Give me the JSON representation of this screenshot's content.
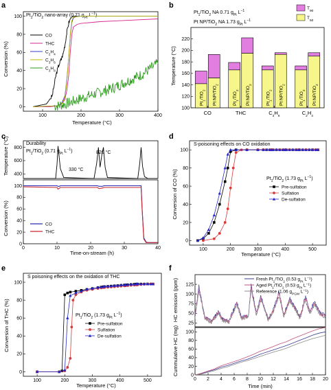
{
  "chart_data": [
    {
      "panel": "a",
      "type": "line",
      "title": "Pt₁/TiO₂ nano-array (0.71 gₜ L⁻¹)",
      "title_parts": {
        "a": "Pt",
        "b": "1",
        "c": "/TiO",
        "d": "2",
        "e": " nano-array (0.71 g",
        "f": "Pt",
        "g": " L",
        "h": "−1",
        "i": ")"
      },
      "xlabel": "Temperature (°C)",
      "ylabel": "Conversion (%)",
      "xlim": [
        50,
        400
      ],
      "ylim": [
        -5,
        105
      ],
      "xticks": [
        100,
        200,
        300,
        400
      ],
      "yticks": [
        0,
        20,
        40,
        60,
        80,
        100
      ],
      "legend_position": "left",
      "series": [
        {
          "name": "CO",
          "legend": {
            "a": "CO"
          },
          "color": "#000000",
          "x": [
            75,
            110,
            125,
            135,
            142,
            148,
            153,
            158,
            163,
            168,
            172,
            176,
            180,
            200,
            250,
            300,
            400
          ],
          "y": [
            0,
            3,
            12,
            35,
            46,
            52,
            58,
            68,
            82,
            93,
            97,
            99,
            100,
            100,
            100,
            100,
            100
          ]
        },
        {
          "name": "THC",
          "legend": {
            "a": "THC"
          },
          "color": "#d6278f",
          "x": [
            75,
            120,
            140,
            150,
            158,
            163,
            168,
            172,
            176,
            180,
            190,
            200,
            250,
            300,
            400
          ],
          "y": [
            0,
            0,
            1,
            3,
            8,
            18,
            35,
            60,
            80,
            88,
            91,
            92,
            94,
            95,
            97
          ]
        },
        {
          "name": "C2H4",
          "legend": {
            "a": "C",
            "b": "2",
            "c": "H",
            "d": "4"
          },
          "color": "#3a3acf",
          "x": [
            75,
            140,
            150,
            158,
            163,
            168,
            172,
            176,
            180,
            190,
            200,
            250,
            400
          ],
          "y": [
            0,
            1,
            4,
            12,
            30,
            55,
            78,
            93,
            98,
            100,
            100,
            100,
            100
          ]
        },
        {
          "name": "C3H6",
          "legend": {
            "a": "C",
            "b": "3",
            "c": "H",
            "d": "6"
          },
          "color": "#b8b800",
          "x": [
            75,
            140,
            150,
            158,
            163,
            168,
            172,
            176,
            180,
            200,
            250,
            400
          ],
          "y": [
            0,
            1,
            3,
            10,
            28,
            55,
            80,
            95,
            99,
            100,
            100,
            100
          ]
        },
        {
          "name": "C3H8",
          "legend": {
            "a": "C",
            "b": "3",
            "c": "H",
            "d": "8"
          },
          "color": "#2e9a1e",
          "x": [
            75,
            120,
            140,
            160,
            180,
            200,
            220,
            250,
            280,
            300,
            330,
            360,
            380,
            400
          ],
          "y": [
            0,
            0,
            1,
            3,
            6,
            9,
            12,
            16,
            20,
            24,
            30,
            36,
            42,
            48
          ]
        }
      ]
    },
    {
      "panel": "b",
      "type": "bar",
      "xlabel": "",
      "ylabel": "Temperature (°C)",
      "ylim": [
        100,
        240
      ],
      "yticks": [
        100,
        120,
        140,
        160,
        180,
        200,
        220
      ],
      "groups": [
        {
          "label": "CO",
          "bars": [
            {
              "t50": 142,
              "t90": 164
            },
            {
              "t50": 152,
              "t90": 193
            }
          ]
        },
        {
          "label": "THC",
          "bars": [
            {
              "t50": 166,
              "t90": 179
            },
            {
              "t50": 195,
              "t90": 222
            }
          ]
        },
        {
          "label": "C3H6",
          "label_parts": {
            "a": "C",
            "b": "3",
            "c": "H",
            "d": "6"
          },
          "bars": [
            {
              "t50": 166,
              "t90": 173
            },
            {
              "t50": 193,
              "t90": 196
            }
          ]
        },
        {
          "label": "C2H4",
          "label_parts": {
            "a": "C",
            "b": "2",
            "c": "H",
            "d": "4"
          },
          "bars": [
            {
              "t50": 166,
              "t90": 173
            },
            {
              "t50": 190,
              "t90": 196
            }
          ]
        }
      ],
      "bar_labels": [
        {
          "a": "Pt",
          "b": "1",
          "c": "/TiO",
          "d": "2"
        },
        {
          "a": "Pt NP/TiO",
          "b": "2"
        }
      ],
      "legend": [
        {
          "a": "T",
          "b": "90",
          "color": "#e27ee0"
        },
        {
          "a": "T",
          "b": "50",
          "color": "#f6f68a"
        }
      ],
      "legend_position": "top-right",
      "notes": [
        {
          "a": "Pt",
          "b": "1",
          "c": "/TiO",
          "d": "2",
          "e": " NA 0.71 g",
          "f": "Pt",
          "g": " L",
          "h": "−1"
        },
        {
          "a": "Pt NP/TiO",
          "b": "2",
          "c": " NA 1.73 g",
          "d": "Pt",
          "e": " L",
          "f": "−1"
        }
      ]
    },
    {
      "panel": "c",
      "type": "line",
      "title": "Durability",
      "subtitle": {
        "a": "Pt",
        "b": "1",
        "c": "/TiO",
        "d": "2",
        "e": " (0.71 g",
        "f": "Pt",
        "g": " L",
        "h": "−1",
        "i": ")"
      },
      "xlabel": "Time-on-stream (h)",
      "ylabel_top": "Temperature (°C)",
      "ylabel_bottom": "Conversion (%)",
      "xlim": [
        0,
        40
      ],
      "xticks": [
        0,
        10,
        20,
        30,
        40
      ],
      "ylim_top": [
        330,
        900
      ],
      "yticks_top": [
        400,
        600,
        800
      ],
      "ylim_bottom": [
        0,
        110
      ],
      "yticks_bottom": [
        0,
        20,
        40,
        60,
        80,
        100
      ],
      "annotations": [
        "330 °C",
        "820 °C"
      ],
      "temperature": {
        "x": [
          0,
          9.6,
          10,
          10.3,
          11,
          12,
          21,
          21.8,
          22.3,
          22.8,
          23.3,
          23.8,
          24.3,
          25,
          34,
          34.6,
          35,
          35.4,
          36,
          37,
          40
        ],
        "y": [
          330,
          330,
          540,
          820,
          480,
          345,
          330,
          560,
          800,
          500,
          680,
          800,
          500,
          345,
          330,
          560,
          800,
          520,
          360,
          330,
          330
        ]
      },
      "legend_position": "bottom-left",
      "series": [
        {
          "name": "CO",
          "color": "#2a2ab8",
          "x": [
            0,
            10,
            10.3,
            10.8,
            11,
            22,
            22.5,
            23.5,
            24,
            34,
            35,
            35.3,
            35.8,
            36.5,
            37,
            40
          ],
          "y": [
            100,
            100,
            99,
            99,
            100,
            100,
            99,
            99,
            100,
            100,
            100,
            60,
            10,
            3,
            2,
            2
          ]
        },
        {
          "name": "THC",
          "color": "#c8282e",
          "x": [
            0,
            10,
            10.3,
            10.8,
            11,
            22,
            22.5,
            23.5,
            24,
            34,
            35,
            35.3,
            35.8,
            36.5,
            37,
            40
          ],
          "y": [
            98,
            97,
            94,
            96,
            97,
            97,
            95,
            96,
            97,
            97,
            97,
            58,
            8,
            2,
            2,
            2
          ]
        }
      ]
    },
    {
      "panel": "d",
      "type": "line",
      "title": "S-poisoning effects on CO oxidation",
      "note": {
        "a": "Pt",
        "b": "1",
        "c": "/TiO",
        "d": "2",
        "e": " (1.73 g",
        "f": "Pt",
        "g": " L",
        "h": "−1",
        "i": ")"
      },
      "xlabel": "Temperature (°C)",
      "ylabel": "Conversion of CO (%)",
      "xlim": [
        50,
        550
      ],
      "ylim": [
        -5,
        110
      ],
      "xticks": [
        100,
        200,
        300,
        400,
        500
      ],
      "yticks": [
        0,
        20,
        40,
        60,
        80,
        100
      ],
      "legend_position": "right",
      "series": [
        {
          "name": "Pre-sulfation",
          "marker": "square",
          "color": "#000000",
          "x": [
            80,
            100,
            120,
            140,
            160,
            180,
            190,
            200,
            220,
            260,
            300,
            350,
            400,
            450,
            500,
            520
          ],
          "y": [
            0,
            2,
            8,
            20,
            40,
            65,
            80,
            98,
            100,
            100,
            100,
            100,
            100,
            100,
            100,
            100
          ]
        },
        {
          "name": "Sulfation",
          "marker": "circle",
          "color": "#d73a3a",
          "x": [
            100,
            140,
            160,
            180,
            190,
            200,
            210,
            220,
            240,
            260,
            300,
            350,
            400,
            450,
            500,
            520
          ],
          "y": [
            0,
            2,
            8,
            20,
            35,
            58,
            80,
            97,
            100,
            100,
            100,
            100,
            100,
            100,
            100,
            100
          ]
        },
        {
          "name": "De-sulfation",
          "marker": "triangle",
          "color": "#2626c8",
          "x": [
            80,
            100,
            120,
            140,
            160,
            180,
            190,
            200,
            220,
            260,
            300,
            350,
            400,
            450,
            500,
            520
          ],
          "y": [
            0,
            3,
            12,
            28,
            52,
            80,
            95,
            100,
            100,
            100,
            100,
            100,
            100,
            100,
            100,
            100
          ]
        }
      ]
    },
    {
      "panel": "e",
      "type": "line",
      "title": "S poisoning effects on the oxidation of THC",
      "note": {
        "a": "Pt",
        "b": "1",
        "c": "/TiO",
        "d": "2",
        "e": " (1.73 g",
        "f": "Pt",
        "g": " L",
        "h": "−1",
        "i": ")"
      },
      "xlabel": "Temperature (°C)",
      "ylabel": "Conversion of THC (%)",
      "xlim": [
        50,
        550
      ],
      "ylim": [
        -5,
        110
      ],
      "xticks": [
        100,
        200,
        300,
        400,
        500
      ],
      "yticks": [
        0,
        20,
        40,
        60,
        80,
        100
      ],
      "legend_position": "right",
      "series": [
        {
          "name": "Pre-sulfation",
          "marker": "square",
          "color": "#000000",
          "x": [
            100,
            180,
            190,
            200,
            210,
            220,
            240,
            260,
            280,
            300,
            340,
            380,
            420,
            460,
            500,
            520
          ],
          "y": [
            0,
            0,
            1,
            86,
            88,
            89,
            90,
            91,
            92,
            93,
            95,
            96,
            97,
            98,
            98,
            98
          ]
        },
        {
          "name": "Sulfation",
          "marker": "circle",
          "color": "#d73a3a",
          "x": [
            100,
            180,
            200,
            210,
            220,
            225,
            230,
            240,
            260,
            280,
            300,
            340,
            380,
            420,
            460,
            500,
            520
          ],
          "y": [
            0,
            0,
            1,
            5,
            15,
            50,
            80,
            86,
            89,
            91,
            92,
            94,
            95,
            96,
            97,
            98,
            98
          ]
        },
        {
          "name": "De-sulfation",
          "marker": "triangle",
          "color": "#2626c8",
          "x": [
            100,
            180,
            200,
            210,
            220,
            240,
            260,
            280,
            300,
            340,
            380,
            420,
            460,
            500,
            520
          ],
          "y": [
            0,
            0,
            2,
            60,
            85,
            88,
            90,
            92,
            93,
            95,
            96,
            97,
            98,
            98,
            98
          ]
        }
      ]
    },
    {
      "panel": "f",
      "type": "line",
      "xlabel": "Time (min)",
      "ylabel_top": "HC emission (ppm)",
      "ylabel_bottom": "Cummulative HC (mg)",
      "xlim": [
        0,
        20
      ],
      "xticks": [
        0,
        2,
        4,
        6,
        8,
        10,
        12,
        14,
        16,
        18,
        20
      ],
      "ylim_top": [
        15,
        150
      ],
      "yticks_top": [
        25,
        50,
        75,
        100,
        125
      ],
      "ylim_bottom": [
        0,
        110
      ],
      "yticks_bottom": [
        0,
        20,
        40,
        60,
        80,
        100
      ],
      "legend_position": "top-right",
      "series": [
        {
          "name": "Fresh Pt1/TiO2 (0.53 gPt L−1)",
          "legend": {
            "a": "Fresh Pt",
            "b": "1",
            "c": "/TiO",
            "d": "2",
            "e": " (0.53 g",
            "f": "Pt",
            "g": " L",
            "h": "−1",
            "i": ")"
          },
          "color": "#3a3a9a"
        },
        {
          "name": "Aged Pt1/TiO2 (0.53 gPt L−1)",
          "legend": {
            "a": "Aged Pt",
            "b": "1",
            "c": "/TiO",
            "d": "2",
            "e": " (0.53 g",
            "f": "Pt",
            "g": " L",
            "h": "−1",
            "i": ")"
          },
          "color": "#c0507a"
        },
        {
          "name": "Reference (1.06 gPGM L−1)",
          "legend": {
            "a": "Reference (1.06 g",
            "b": "PGM",
            "c": " L",
            "d": "−1",
            "e": ")"
          },
          "color": "#8a8a8a"
        }
      ],
      "hc_emission_peaks": {
        "x": [
          0,
          0.6,
          1.5,
          2.5,
          3.6,
          4.2,
          5.2,
          6.4,
          7.1,
          8.2,
          8.6,
          9.4,
          10.1,
          11.2,
          12.0,
          12.9,
          13.6,
          14.5,
          15.2,
          16.1,
          16.9,
          17.6,
          18.3,
          19.2,
          20
        ],
        "y": [
          45,
          120,
          40,
          30,
          55,
          35,
          30,
          80,
          40,
          45,
          125,
          50,
          95,
          35,
          60,
          105,
          45,
          90,
          70,
          40,
          95,
          55,
          80,
          50,
          45
        ]
      },
      "cumulative": {
        "x": [
          0,
          1,
          2,
          3,
          4,
          5,
          6,
          7,
          8,
          9,
          10,
          11,
          12,
          13,
          14,
          15,
          16,
          17,
          18,
          19,
          20
        ],
        "fresh": [
          0,
          3,
          8,
          12,
          18,
          22,
          27,
          32,
          36,
          42,
          48,
          53,
          58,
          63,
          68,
          74,
          80,
          86,
          92,
          97,
          100
        ],
        "aged": [
          0,
          4,
          9,
          14,
          21,
          26,
          31,
          36,
          42,
          48,
          55,
          60,
          66,
          72,
          77,
          84,
          90,
          96,
          102,
          107,
          110
        ],
        "reference": [
          0,
          2,
          6,
          10,
          15,
          19,
          24,
          29,
          33,
          38,
          43,
          48,
          53,
          57,
          62,
          68,
          74,
          79,
          84,
          88,
          92
        ]
      }
    }
  ],
  "panel_labels": [
    "a",
    "b",
    "c",
    "d",
    "e",
    "f"
  ]
}
